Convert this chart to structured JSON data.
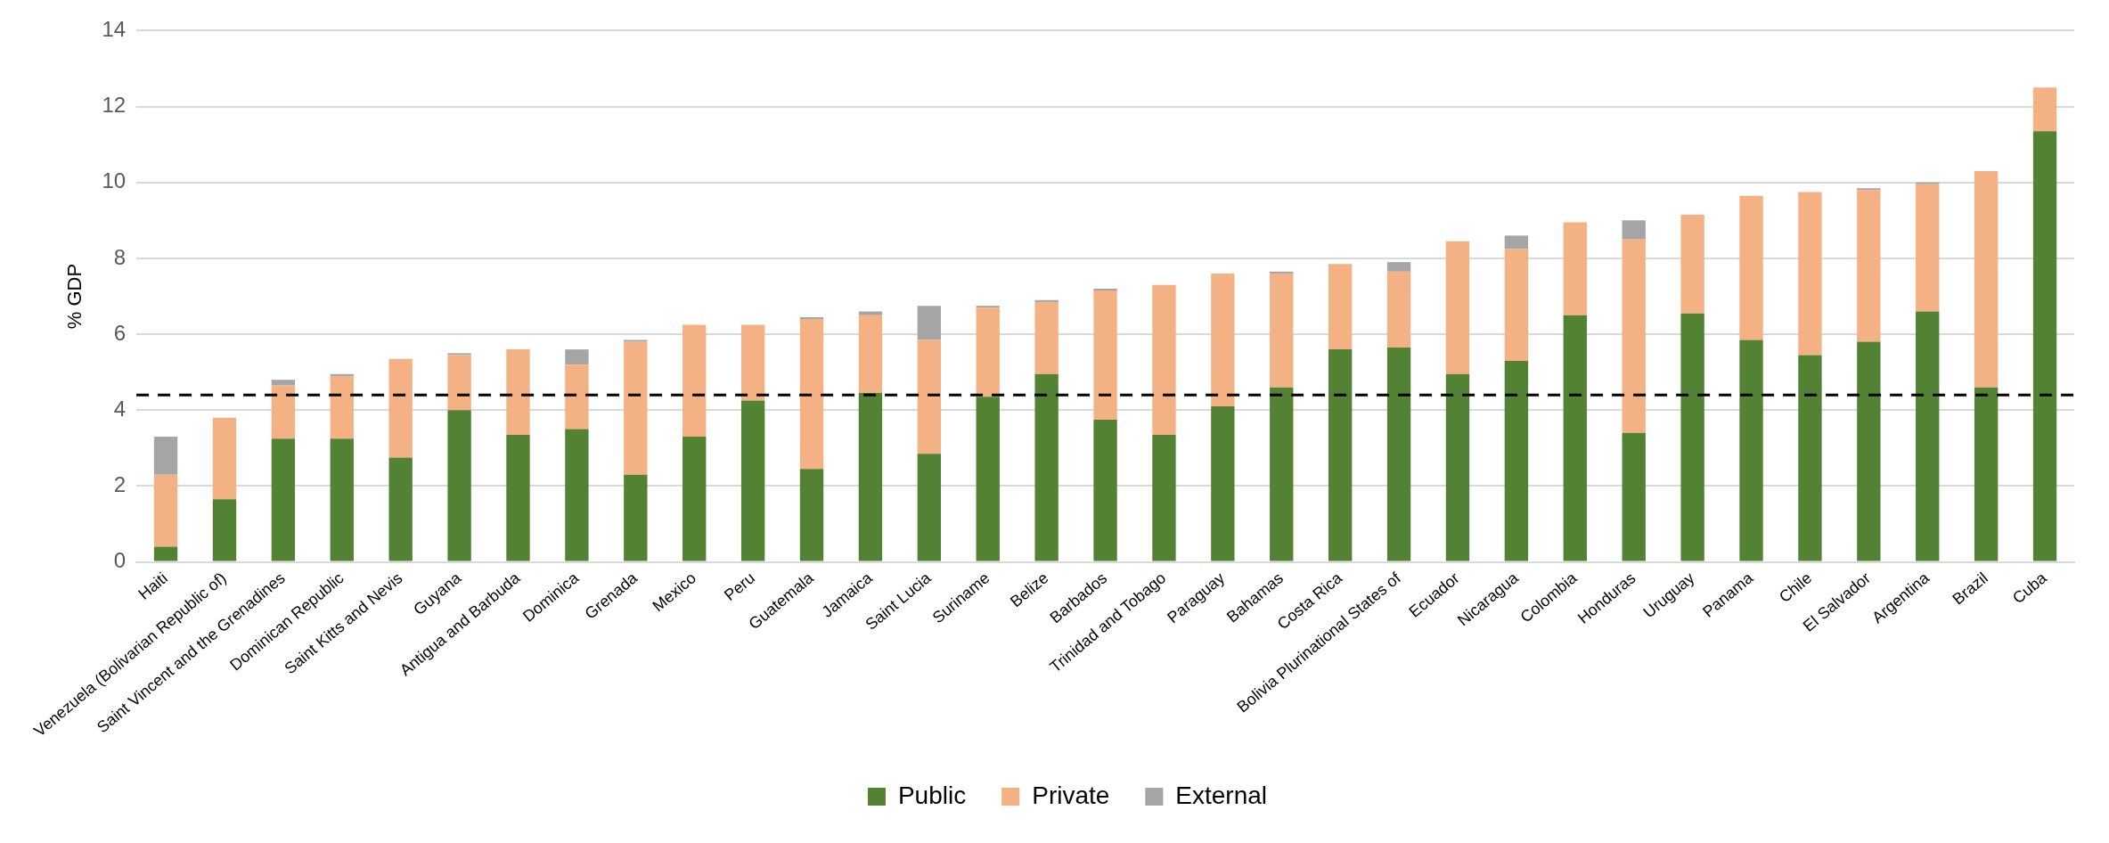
{
  "chart_data": {
    "type": "bar",
    "stacked": true,
    "ylabel": "% GDP",
    "categories": [
      "Haiti",
      "Venezuela (Bolivarian Republic of)",
      "Saint Vincent and the Grenadines",
      "Dominican Republic",
      "Saint Kitts and Nevis",
      "Guyana",
      "Antigua and Barbuda",
      "Dominica",
      "Grenada",
      "Mexico",
      "Peru",
      "Guatemala",
      "Jamaica",
      "Saint Lucia",
      "Suriname",
      "Belize",
      "Barbados",
      "Trinidad and Tobago",
      "Paraguay",
      "Bahamas",
      "Costa Rica",
      "Bolivia Plurinational States of",
      "Ecuador",
      "Nicaragua",
      "Colombia",
      "Honduras",
      "Uruguay",
      "Panama",
      "Chile",
      "El Salvador",
      "Argentina",
      "Brazil",
      "Cuba"
    ],
    "series": [
      {
        "name": "Public",
        "color": "#548235",
        "values": [
          0.4,
          1.65,
          3.25,
          3.25,
          2.75,
          4.0,
          3.35,
          3.5,
          2.3,
          3.3,
          4.25,
          2.45,
          4.45,
          2.85,
          4.35,
          4.95,
          3.75,
          3.35,
          4.1,
          4.6,
          5.6,
          5.65,
          4.95,
          5.3,
          6.5,
          3.4,
          6.55,
          5.85,
          5.45,
          5.8,
          6.6,
          4.6,
          11.35
        ]
      },
      {
        "name": "Private",
        "color": "#f4b183",
        "values": [
          1.9,
          2.15,
          1.4,
          1.65,
          2.6,
          1.45,
          2.25,
          1.7,
          3.5,
          2.95,
          2.0,
          3.95,
          2.05,
          3.0,
          2.35,
          1.9,
          3.4,
          3.95,
          3.5,
          3.0,
          2.25,
          2.0,
          3.5,
          2.95,
          2.45,
          5.1,
          2.6,
          3.8,
          4.3,
          4.0,
          3.35,
          5.7,
          1.15
        ]
      },
      {
        "name": "External",
        "color": "#a5a5a5",
        "values": [
          1.0,
          null,
          0.15,
          0.05,
          null,
          0.05,
          null,
          0.4,
          0.05,
          null,
          null,
          0.05,
          0.1,
          0.9,
          0.05,
          0.05,
          0.05,
          null,
          null,
          0.05,
          null,
          0.25,
          null,
          0.35,
          null,
          0.5,
          null,
          null,
          null,
          0.05,
          0.05,
          null,
          null
        ]
      }
    ],
    "ylim": [
      0,
      14
    ],
    "yticks": [
      0,
      2,
      4,
      6,
      8,
      10,
      12,
      14
    ],
    "grid": "y",
    "legend": "bottom",
    "ref_lines": [
      {
        "axis": "y",
        "value": 4.4,
        "color": "#000000",
        "line_style": "dashed"
      }
    ]
  }
}
